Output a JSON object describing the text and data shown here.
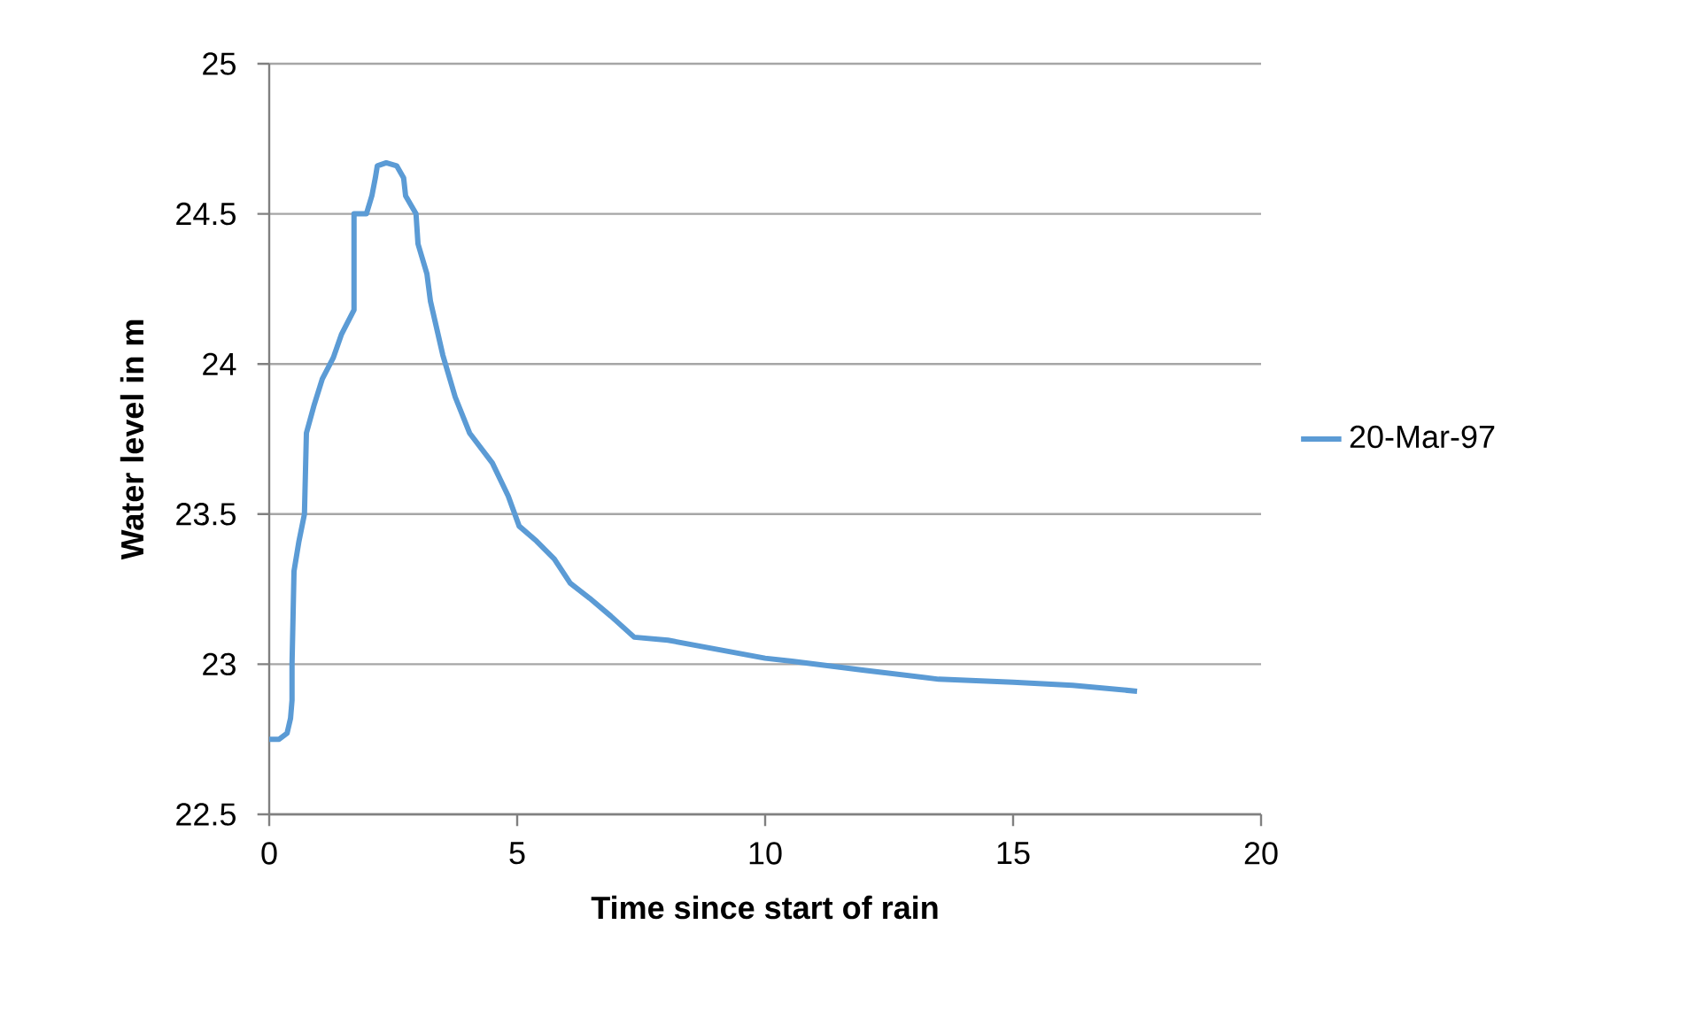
{
  "chart_data": {
    "type": "line",
    "xlabel": "Time since start of rain",
    "ylabel": "Water level in m",
    "xlim": [
      0,
      20
    ],
    "ylim": [
      22.5,
      25
    ],
    "xticks": [
      0,
      5,
      10,
      15,
      20
    ],
    "yticks": [
      22.5,
      23,
      23.5,
      24,
      24.5,
      25
    ],
    "grid": "y",
    "legend": "right",
    "marker": "none",
    "line_style": "solid",
    "series": [
      {
        "name": "20-Mar-97",
        "color": "#5b9bd5",
        "x": [
          0,
          0.2,
          0.36,
          0.43,
          0.46,
          0.46,
          0.5,
          0.6,
          0.71,
          0.75,
          0.9,
          1.07,
          1.29,
          1.46,
          1.71,
          1.71,
          1.96,
          2.07,
          2.14,
          2.18,
          2.36,
          2.57,
          2.71,
          2.75,
          2.96,
          3.0,
          3.18,
          3.25,
          3.5,
          3.75,
          4.04,
          4.5,
          4.82,
          5.04,
          5.39,
          5.75,
          6.07,
          6.46,
          6.89,
          7.36,
          8.04,
          10.0,
          10.54,
          12.0,
          13.5,
          15.0,
          16.2,
          17.5
        ],
        "values": [
          22.75,
          22.75,
          22.77,
          22.82,
          22.88,
          23.0,
          23.31,
          23.41,
          23.5,
          23.77,
          23.86,
          23.95,
          24.02,
          24.1,
          24.18,
          24.5,
          24.5,
          24.56,
          24.62,
          24.66,
          24.67,
          24.66,
          24.62,
          24.56,
          24.5,
          24.4,
          24.3,
          24.21,
          24.03,
          23.89,
          23.77,
          23.67,
          23.56,
          23.46,
          23.41,
          23.35,
          23.27,
          23.22,
          23.16,
          23.09,
          23.08,
          23.02,
          23.01,
          22.98,
          22.95,
          22.94,
          22.93,
          22.91
        ]
      }
    ]
  }
}
